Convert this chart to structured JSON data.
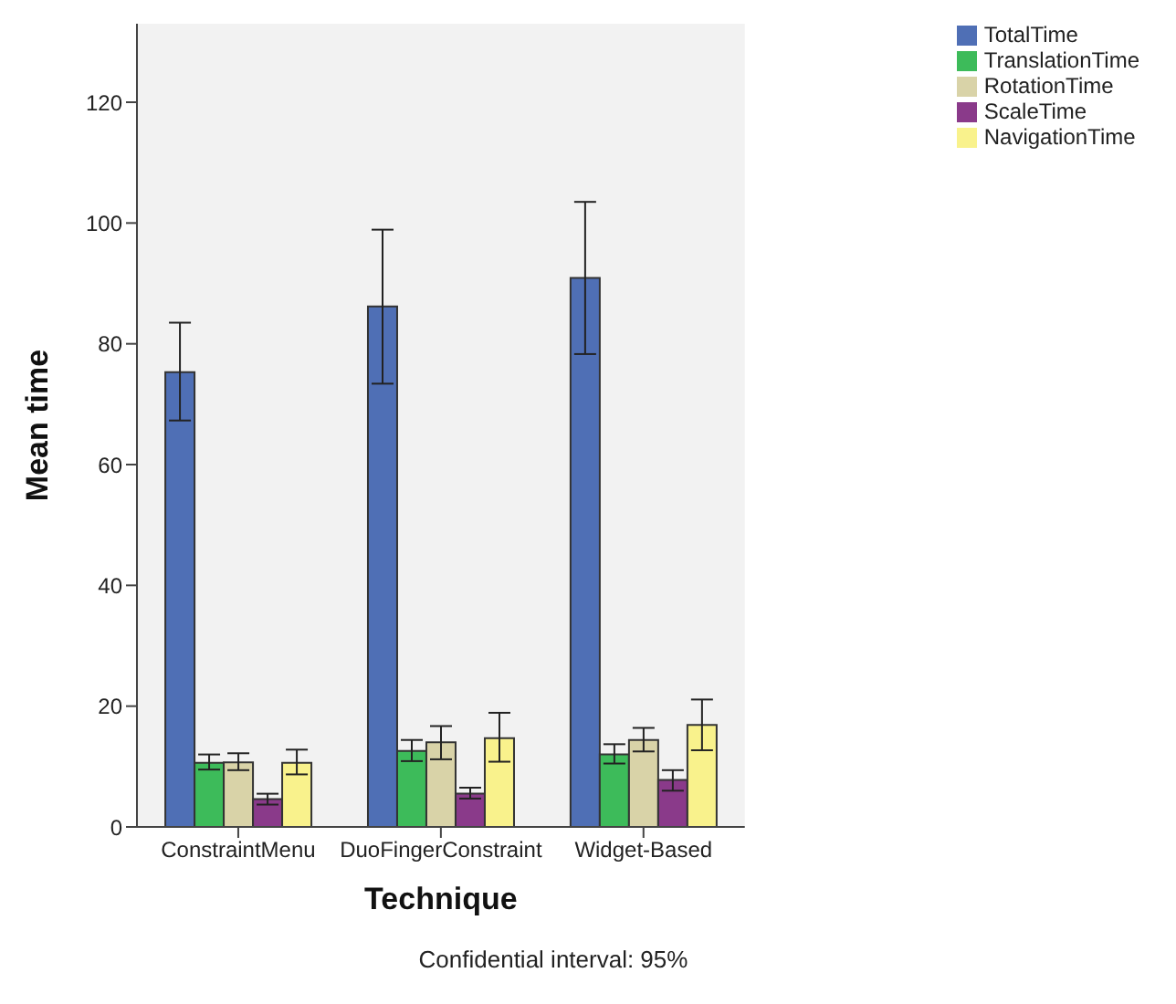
{
  "chart_data": {
    "type": "bar",
    "xlabel": "Technique",
    "ylabel": "Mean time",
    "categories": [
      "ConstraintMenu",
      "DuoFingerConstraint",
      "Widget-Based"
    ],
    "series": [
      {
        "name": "TotalTime",
        "color": "#4f6fb5",
        "values": [
          75.3,
          86.2,
          90.9
        ],
        "errors": [
          [
            67.3,
            83.5
          ],
          [
            73.4,
            98.9
          ],
          [
            78.3,
            103.5
          ]
        ]
      },
      {
        "name": "TranslationTime",
        "color": "#3dbb5a",
        "values": [
          10.6,
          12.6,
          12.0
        ],
        "errors": [
          [
            9.5,
            12.0
          ],
          [
            10.9,
            14.4
          ],
          [
            10.5,
            13.7
          ]
        ]
      },
      {
        "name": "RotationTime",
        "color": "#d9d3a8",
        "values": [
          10.7,
          14.0,
          14.4
        ],
        "errors": [
          [
            9.4,
            12.2
          ],
          [
            11.2,
            16.7
          ],
          [
            12.5,
            16.4
          ]
        ]
      },
      {
        "name": "ScaleTime",
        "color": "#8a3a8a",
        "values": [
          4.6,
          5.5,
          7.8
        ],
        "errors": [
          [
            3.7,
            5.5
          ],
          [
            4.7,
            6.5
          ],
          [
            6.0,
            9.4
          ]
        ]
      },
      {
        "name": "NavigationTime",
        "color": "#f9f28c",
        "values": [
          10.6,
          14.7,
          16.9
        ],
        "errors": [
          [
            8.7,
            12.8
          ],
          [
            10.8,
            18.9
          ],
          [
            12.7,
            21.1
          ]
        ]
      }
    ],
    "ylim": [
      0,
      133
    ],
    "yticks": [
      0,
      20,
      40,
      60,
      80,
      100,
      120
    ],
    "grid": false,
    "legend": "top right",
    "annotations": [
      "Confidential interval: 95%"
    ]
  }
}
